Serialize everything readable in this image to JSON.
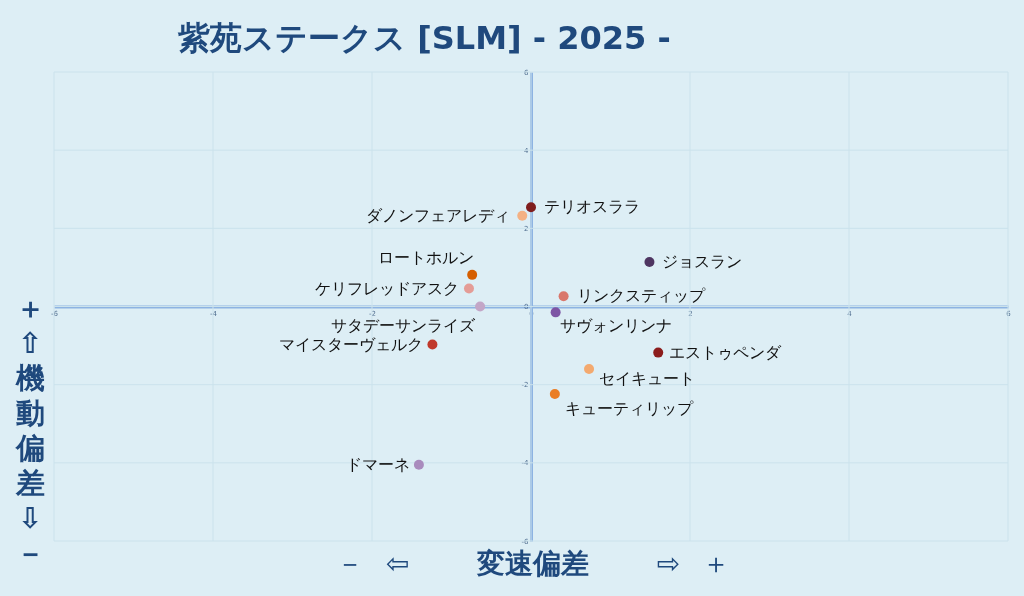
{
  "chart_data": {
    "type": "scatter",
    "title": "紫苑ステークス [SLM]  - 2025 -",
    "xlabel": "－ ⇦ 変速偏差 ⇨ ＋",
    "ylabel": "＋ ⇧ 機動偏差 ⇩ －",
    "xlim": [
      -6,
      6
    ],
    "ylim": [
      -6,
      6
    ],
    "xticks": [
      -6,
      -4,
      -2,
      0,
      2,
      4,
      6
    ],
    "yticks": [
      -6,
      -4,
      -2,
      0,
      2,
      4,
      6
    ],
    "grid": true,
    "marker": "circle",
    "series": [
      {
        "name": "テリオスララ",
        "color": "#7f1d1d",
        "x": [
          0.0
        ],
        "values": [
          2.54
        ]
      },
      {
        "name": "ダノンフェアレディ",
        "color": "#f4b183",
        "x": [
          -0.11
        ],
        "values": [
          2.32
        ]
      },
      {
        "name": "ロートホルン",
        "color": "#d55e00",
        "x": [
          -0.74
        ],
        "values": [
          0.81
        ]
      },
      {
        "name": "ケリフレッドアスク",
        "color": "#e49c96",
        "x": [
          -0.78
        ],
        "values": [
          0.46
        ]
      },
      {
        "name": "サタデーサンライズ",
        "color": "#c3a6c7",
        "x": [
          -0.64
        ],
        "values": [
          0.0
        ]
      },
      {
        "name": "マイスターヴェルク",
        "color": "#c0392b",
        "x": [
          -1.24
        ],
        "values": [
          -0.97
        ]
      },
      {
        "name": "ドマーネ",
        "color": "#a98bbd",
        "x": [
          -1.41
        ],
        "values": [
          -4.05
        ]
      },
      {
        "name": "ジョスラン",
        "color": "#4e3561",
        "x": [
          1.49
        ],
        "values": [
          1.14
        ]
      },
      {
        "name": "リンクスティップ",
        "color": "#d9776c",
        "x": [
          0.41
        ],
        "values": [
          0.26
        ]
      },
      {
        "name": "サヴォンリンナ",
        "color": "#7d55a5",
        "x": [
          0.31
        ],
        "values": [
          -0.15
        ]
      },
      {
        "name": "エストゥペンダ",
        "color": "#8b1c1c",
        "x": [
          1.6
        ],
        "values": [
          -1.18
        ]
      },
      {
        "name": "セイキュート",
        "color": "#f3a96f",
        "x": [
          0.73
        ],
        "values": [
          -1.6
        ]
      },
      {
        "name": "キューティリップ",
        "color": "#ea7d24",
        "x": [
          0.3
        ],
        "values": [
          -2.24
        ]
      }
    ]
  }
}
